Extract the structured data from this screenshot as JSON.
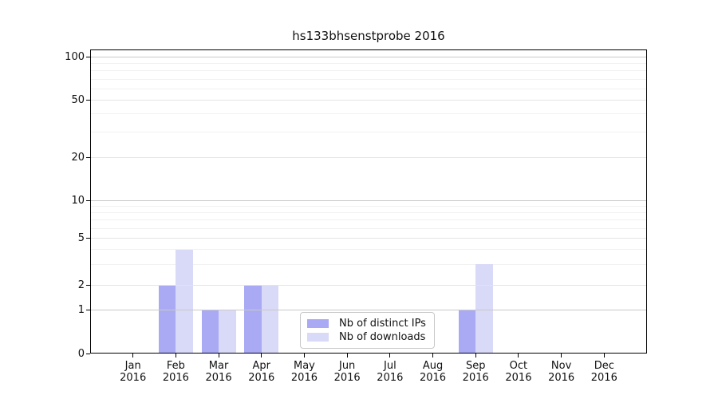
{
  "figure": {
    "title": "hs133bhsenstprobe 2016",
    "background": "#ffffff"
  },
  "chart_data": {
    "type": "bar",
    "title": "hs133bhsenstprobe 2016",
    "categories": [
      "Jan 2016",
      "Feb 2016",
      "Mar 2016",
      "Apr 2016",
      "May 2016",
      "Jun 2016",
      "Jul 2016",
      "Aug 2016",
      "Sep 2016",
      "Oct 2016",
      "Nov 2016",
      "Dec 2016"
    ],
    "series": [
      {
        "name": "Nb of distinct IPs",
        "color": "#a9a9f4",
        "values": [
          0,
          2,
          1,
          2,
          0,
          0,
          0,
          0,
          1,
          0,
          0,
          0
        ]
      },
      {
        "name": "Nb of downloads",
        "color": "#d9d9f8",
        "values": [
          0,
          4,
          1,
          2,
          0,
          0,
          0,
          0,
          3,
          0,
          0,
          0
        ]
      }
    ],
    "xlabel": "",
    "ylabel": "",
    "y_axis": {
      "scale": "log-like",
      "tick_values": [
        0,
        1,
        2,
        5,
        10,
        20,
        50,
        100
      ],
      "decade_gridline_values": [
        1,
        10,
        100
      ],
      "labeled_gridline_values": [
        2,
        5,
        20,
        50
      ],
      "minor_gridline_values": [
        3,
        4,
        6,
        7,
        8,
        9,
        30,
        40,
        60,
        70,
        80,
        90
      ],
      "ylim": [
        0,
        100
      ]
    },
    "legend": {
      "position": "lower-center",
      "entries": [
        "Nb of distinct IPs",
        "Nb of downloads"
      ]
    },
    "grid": true,
    "colors": {
      "decade_grid": "#c9c9c9",
      "labeled_grid": "#e4e4e4",
      "minor_grid": "#f1f1f1",
      "axis": "#000000",
      "text": "#111111"
    }
  }
}
